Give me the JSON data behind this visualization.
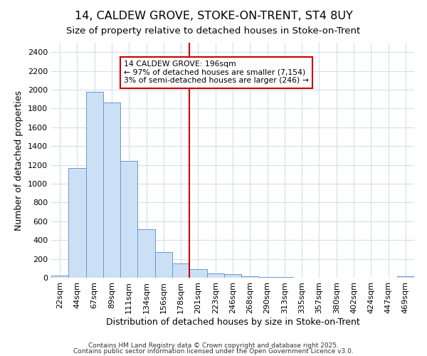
{
  "title1": "14, CALDEW GROVE, STOKE-ON-TRENT, ST4 8UY",
  "title2": "Size of property relative to detached houses in Stoke-on-Trent",
  "xlabel": "Distribution of detached houses by size in Stoke-on-Trent",
  "ylabel": "Number of detached properties",
  "bin_labels": [
    "22sqm",
    "44sqm",
    "67sqm",
    "89sqm",
    "111sqm",
    "134sqm",
    "156sqm",
    "178sqm",
    "201sqm",
    "223sqm",
    "246sqm",
    "268sqm",
    "290sqm",
    "313sqm",
    "335sqm",
    "357sqm",
    "380sqm",
    "402sqm",
    "424sqm",
    "447sqm",
    "469sqm"
  ],
  "bar_values": [
    25,
    1165,
    1980,
    1860,
    1245,
    515,
    275,
    155,
    90,
    45,
    40,
    18,
    10,
    5,
    3,
    2,
    2,
    1,
    1,
    1,
    18
  ],
  "bar_color": "#cce0f5",
  "bar_edge_color": "#6699cc",
  "vline_x_idx": 8,
  "vline_color": "#cc0000",
  "annotation_text": "14 CALDEW GROVE: 196sqm\n← 97% of detached houses are smaller (7,154)\n3% of semi-detached houses are larger (246) →",
  "annotation_box_color": "white",
  "annotation_box_edge_color": "#cc0000",
  "ylim": [
    0,
    2500
  ],
  "yticks": [
    0,
    200,
    400,
    600,
    800,
    1000,
    1200,
    1400,
    1600,
    1800,
    2000,
    2200,
    2400
  ],
  "bg_color": "#ffffff",
  "grid_color": "#d0dff0",
  "footer1": "Contains HM Land Registry data © Crown copyright and database right 2025.",
  "footer2": "Contains public sector information licensed under the Open Government Licence v3.0.",
  "title1_fontsize": 11.5,
  "title2_fontsize": 9.5,
  "axis_label_fontsize": 9,
  "tick_fontsize": 8,
  "footer_fontsize": 6.5
}
